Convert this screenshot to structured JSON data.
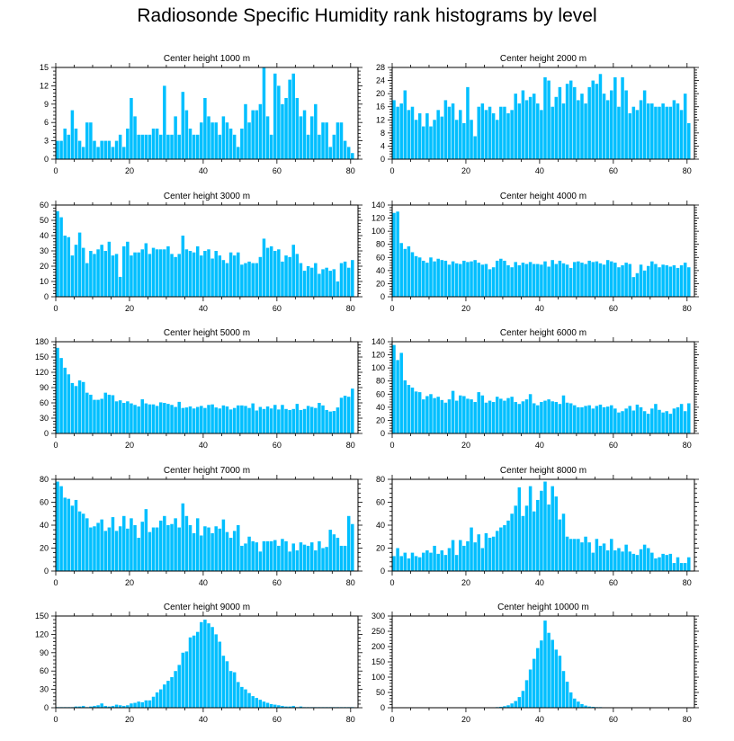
{
  "title": "Radiosonde Specific Humidity rank histograms by level",
  "bar_color": "#00bfff",
  "chart_data": [
    {
      "type": "bar",
      "title": "Center height 1000 m",
      "xlim": [
        0,
        82
      ],
      "ylim": [
        0,
        15
      ],
      "xticks": [
        0,
        20,
        40,
        60,
        80
      ],
      "yticks": [
        0,
        3,
        6,
        9,
        12,
        15
      ],
      "values": [
        3,
        3,
        5,
        4,
        8,
        5,
        3,
        2,
        6,
        6,
        3,
        2,
        3,
        3,
        3,
        2,
        3,
        4,
        2,
        5,
        10,
        7,
        4,
        4,
        4,
        4,
        5,
        5,
        4,
        12,
        4,
        4,
        7,
        4,
        11,
        8,
        5,
        4,
        4,
        6,
        10,
        7,
        6,
        6,
        4,
        7,
        6,
        5,
        4,
        2,
        5,
        9,
        6,
        8,
        8,
        9,
        15,
        7,
        4,
        14,
        12,
        9,
        10,
        13,
        14,
        10,
        7,
        8,
        4,
        7,
        9,
        4,
        6,
        6,
        2,
        4,
        6,
        6,
        3,
        2,
        1
      ]
    },
    {
      "type": "bar",
      "title": "Center height 2000 m",
      "xlim": [
        0,
        82
      ],
      "ylim": [
        0,
        28
      ],
      "xticks": [
        0,
        20,
        40,
        60,
        80
      ],
      "yticks": [
        0,
        4,
        8,
        12,
        16,
        20,
        24,
        28
      ],
      "values": [
        18,
        16,
        17,
        21,
        15,
        16,
        12,
        14,
        10,
        14,
        10,
        12,
        15,
        13,
        18,
        16,
        17,
        12,
        15,
        11,
        22,
        12,
        7,
        16,
        17,
        15,
        16,
        14,
        12,
        16,
        16,
        14,
        15,
        20,
        17,
        21,
        18,
        19,
        20,
        17,
        15,
        25,
        24,
        16,
        19,
        22,
        17,
        23,
        24,
        22,
        18,
        20,
        17,
        22,
        24,
        23,
        26,
        20,
        18,
        21,
        25,
        16,
        25,
        21,
        14,
        16,
        15,
        18,
        21,
        17,
        17,
        16,
        16,
        17,
        16,
        16,
        18,
        17,
        15,
        20,
        11
      ]
    },
    {
      "type": "bar",
      "title": "Center height 3000 m",
      "xlim": [
        0,
        82
      ],
      "ylim": [
        0,
        60
      ],
      "xticks": [
        0,
        20,
        40,
        60,
        80
      ],
      "yticks": [
        0,
        10,
        20,
        30,
        40,
        50,
        60
      ],
      "values": [
        56,
        52,
        40,
        39,
        27,
        34,
        42,
        32,
        22,
        30,
        28,
        31,
        34,
        30,
        36,
        27,
        28,
        13,
        33,
        36,
        27,
        29,
        29,
        31,
        35,
        28,
        32,
        31,
        31,
        31,
        33,
        28,
        26,
        28,
        40,
        31,
        30,
        29,
        33,
        27,
        30,
        31,
        25,
        30,
        27,
        24,
        22,
        29,
        27,
        29,
        21,
        22,
        23,
        22,
        22,
        26,
        38,
        32,
        33,
        30,
        31,
        23,
        27,
        26,
        34,
        28,
        22,
        17,
        20,
        19,
        22,
        15,
        18,
        19,
        17,
        18,
        10,
        22,
        23,
        19,
        24
      ]
    },
    {
      "type": "bar",
      "title": "Center height 4000 m",
      "xlim": [
        0,
        82
      ],
      "ylim": [
        0,
        140
      ],
      "xticks": [
        0,
        20,
        40,
        60,
        80
      ],
      "yticks": [
        0,
        20,
        40,
        60,
        80,
        100,
        120,
        140
      ],
      "values": [
        128,
        130,
        82,
        73,
        77,
        68,
        62,
        60,
        55,
        52,
        60,
        54,
        58,
        56,
        55,
        49,
        54,
        51,
        50,
        55,
        53,
        54,
        56,
        52,
        49,
        50,
        42,
        45,
        55,
        58,
        55,
        48,
        45,
        53,
        48,
        52,
        50,
        53,
        50,
        50,
        49,
        54,
        46,
        56,
        50,
        55,
        51,
        49,
        44,
        53,
        54,
        52,
        50,
        55,
        53,
        54,
        51,
        49,
        56,
        54,
        52,
        45,
        48,
        52,
        50,
        30,
        36,
        49,
        40,
        47,
        54,
        50,
        45,
        49,
        48,
        46,
        48,
        44,
        48,
        52,
        45
      ]
    },
    {
      "type": "bar",
      "title": "Center height 5000 m",
      "xlim": [
        0,
        82
      ],
      "ylim": [
        0,
        180
      ],
      "xticks": [
        0,
        20,
        40,
        60,
        80
      ],
      "yticks": [
        0,
        30,
        60,
        90,
        120,
        150,
        180
      ],
      "values": [
        168,
        148,
        129,
        116,
        99,
        93,
        104,
        101,
        80,
        76,
        66,
        66,
        68,
        80,
        76,
        75,
        63,
        65,
        60,
        63,
        59,
        56,
        53,
        67,
        59,
        57,
        57,
        54,
        61,
        60,
        58,
        56,
        52,
        62,
        50,
        51,
        53,
        49,
        52,
        54,
        50,
        56,
        57,
        51,
        49,
        55,
        53,
        47,
        50,
        55,
        55,
        54,
        50,
        59,
        45,
        52,
        48,
        53,
        49,
        56,
        47,
        56,
        48,
        46,
        48,
        58,
        46,
        48,
        54,
        52,
        50,
        60,
        55,
        46,
        43,
        44,
        51,
        70,
        74,
        72,
        88
      ]
    },
    {
      "type": "bar",
      "title": "Center height 6000 m",
      "xlim": [
        0,
        82
      ],
      "ylim": [
        0,
        140
      ],
      "xticks": [
        0,
        20,
        40,
        60,
        80
      ],
      "yticks": [
        0,
        20,
        40,
        60,
        80,
        100,
        120,
        140
      ],
      "values": [
        135,
        112,
        123,
        81,
        74,
        70,
        64,
        63,
        52,
        57,
        60,
        54,
        56,
        51,
        47,
        52,
        65,
        50,
        58,
        57,
        53,
        52,
        48,
        63,
        58,
        47,
        50,
        48,
        56,
        53,
        50,
        54,
        56,
        48,
        45,
        49,
        52,
        60,
        46,
        43,
        48,
        50,
        52,
        49,
        48,
        45,
        58,
        47,
        46,
        43,
        40,
        40,
        42,
        43,
        38,
        42,
        44,
        40,
        41,
        43,
        38,
        32,
        34,
        38,
        42,
        35,
        44,
        40,
        34,
        30,
        38,
        45,
        36,
        32,
        34,
        30,
        38,
        40,
        45,
        34,
        46
      ]
    },
    {
      "type": "bar",
      "title": "Center height 7000 m",
      "xlim": [
        0,
        82
      ],
      "ylim": [
        0,
        80
      ],
      "xticks": [
        0,
        20,
        40,
        60,
        80
      ],
      "yticks": [
        0,
        20,
        40,
        60,
        80
      ],
      "values": [
        78,
        74,
        64,
        63,
        57,
        62,
        52,
        50,
        46,
        38,
        39,
        42,
        45,
        35,
        38,
        47,
        35,
        39,
        48,
        37,
        46,
        40,
        29,
        43,
        54,
        34,
        38,
        38,
        44,
        48,
        40,
        41,
        46,
        38,
        59,
        48,
        40,
        33,
        46,
        31,
        39,
        38,
        33,
        39,
        37,
        45,
        34,
        29,
        35,
        40,
        22,
        24,
        30,
        26,
        25,
        17,
        26,
        26,
        26,
        27,
        22,
        28,
        26,
        17,
        24,
        18,
        25,
        23,
        22,
        25,
        18,
        26,
        20,
        21,
        36,
        32,
        29,
        22,
        22,
        48,
        41
      ]
    },
    {
      "type": "bar",
      "title": "Center height 8000 m",
      "xlim": [
        0,
        82
      ],
      "ylim": [
        0,
        80
      ],
      "xticks": [
        0,
        20,
        40,
        60,
        80
      ],
      "yticks": [
        0,
        20,
        40,
        60,
        80
      ],
      "values": [
        13,
        20,
        13,
        16,
        11,
        16,
        13,
        12,
        16,
        18,
        16,
        22,
        15,
        18,
        14,
        20,
        27,
        14,
        27,
        22,
        26,
        38,
        25,
        32,
        20,
        33,
        29,
        30,
        35,
        38,
        40,
        44,
        50,
        57,
        73,
        48,
        57,
        74,
        52,
        62,
        70,
        78,
        58,
        74,
        65,
        45,
        50,
        30,
        28,
        28,
        28,
        25,
        30,
        25,
        16,
        28,
        22,
        24,
        18,
        28,
        18,
        20,
        17,
        23,
        17,
        15,
        14,
        19,
        23,
        20,
        16,
        11,
        12,
        15,
        14,
        15,
        7,
        12,
        7,
        7,
        12
      ]
    },
    {
      "type": "bar",
      "title": "Center height 9000 m",
      "xlim": [
        0,
        82
      ],
      "ylim": [
        0,
        150
      ],
      "xticks": [
        0,
        20,
        40,
        60,
        80
      ],
      "yticks": [
        0,
        30,
        60,
        90,
        120,
        150
      ],
      "values": [
        1,
        1,
        1,
        1,
        1,
        2,
        2,
        3,
        1,
        2,
        3,
        4,
        7,
        3,
        2,
        3,
        5,
        4,
        3,
        4,
        7,
        8,
        10,
        9,
        12,
        12,
        18,
        25,
        30,
        38,
        44,
        50,
        60,
        70,
        90,
        92,
        115,
        118,
        124,
        140,
        144,
        138,
        132,
        120,
        108,
        85,
        76,
        60,
        58,
        42,
        34,
        30,
        24,
        19,
        16,
        13,
        10,
        8,
        6,
        5,
        4,
        3,
        2,
        2,
        3,
        1,
        2,
        1,
        1,
        1,
        1,
        1,
        1,
        1,
        1,
        1,
        1,
        1,
        1,
        1,
        1
      ]
    },
    {
      "type": "bar",
      "title": "Center height 10000 m",
      "xlim": [
        0,
        82
      ],
      "ylim": [
        0,
        300
      ],
      "xticks": [
        0,
        20,
        40,
        60,
        80
      ],
      "yticks": [
        0,
        50,
        100,
        150,
        200,
        250,
        300
      ],
      "values": [
        1,
        1,
        1,
        1,
        1,
        1,
        1,
        1,
        1,
        1,
        1,
        1,
        1,
        1,
        1,
        1,
        1,
        1,
        1,
        1,
        1,
        1,
        1,
        1,
        1,
        1,
        1,
        1,
        2,
        3,
        5,
        8,
        14,
        22,
        35,
        55,
        90,
        125,
        160,
        195,
        220,
        285,
        245,
        222,
        190,
        170,
        120,
        85,
        50,
        30,
        20,
        12,
        7,
        4,
        3,
        2,
        2,
        1,
        1,
        1,
        1,
        1,
        1,
        1,
        1,
        1,
        1,
        1,
        1,
        1,
        1,
        1,
        1,
        1,
        1,
        1,
        1,
        1,
        1,
        1,
        1
      ]
    }
  ]
}
